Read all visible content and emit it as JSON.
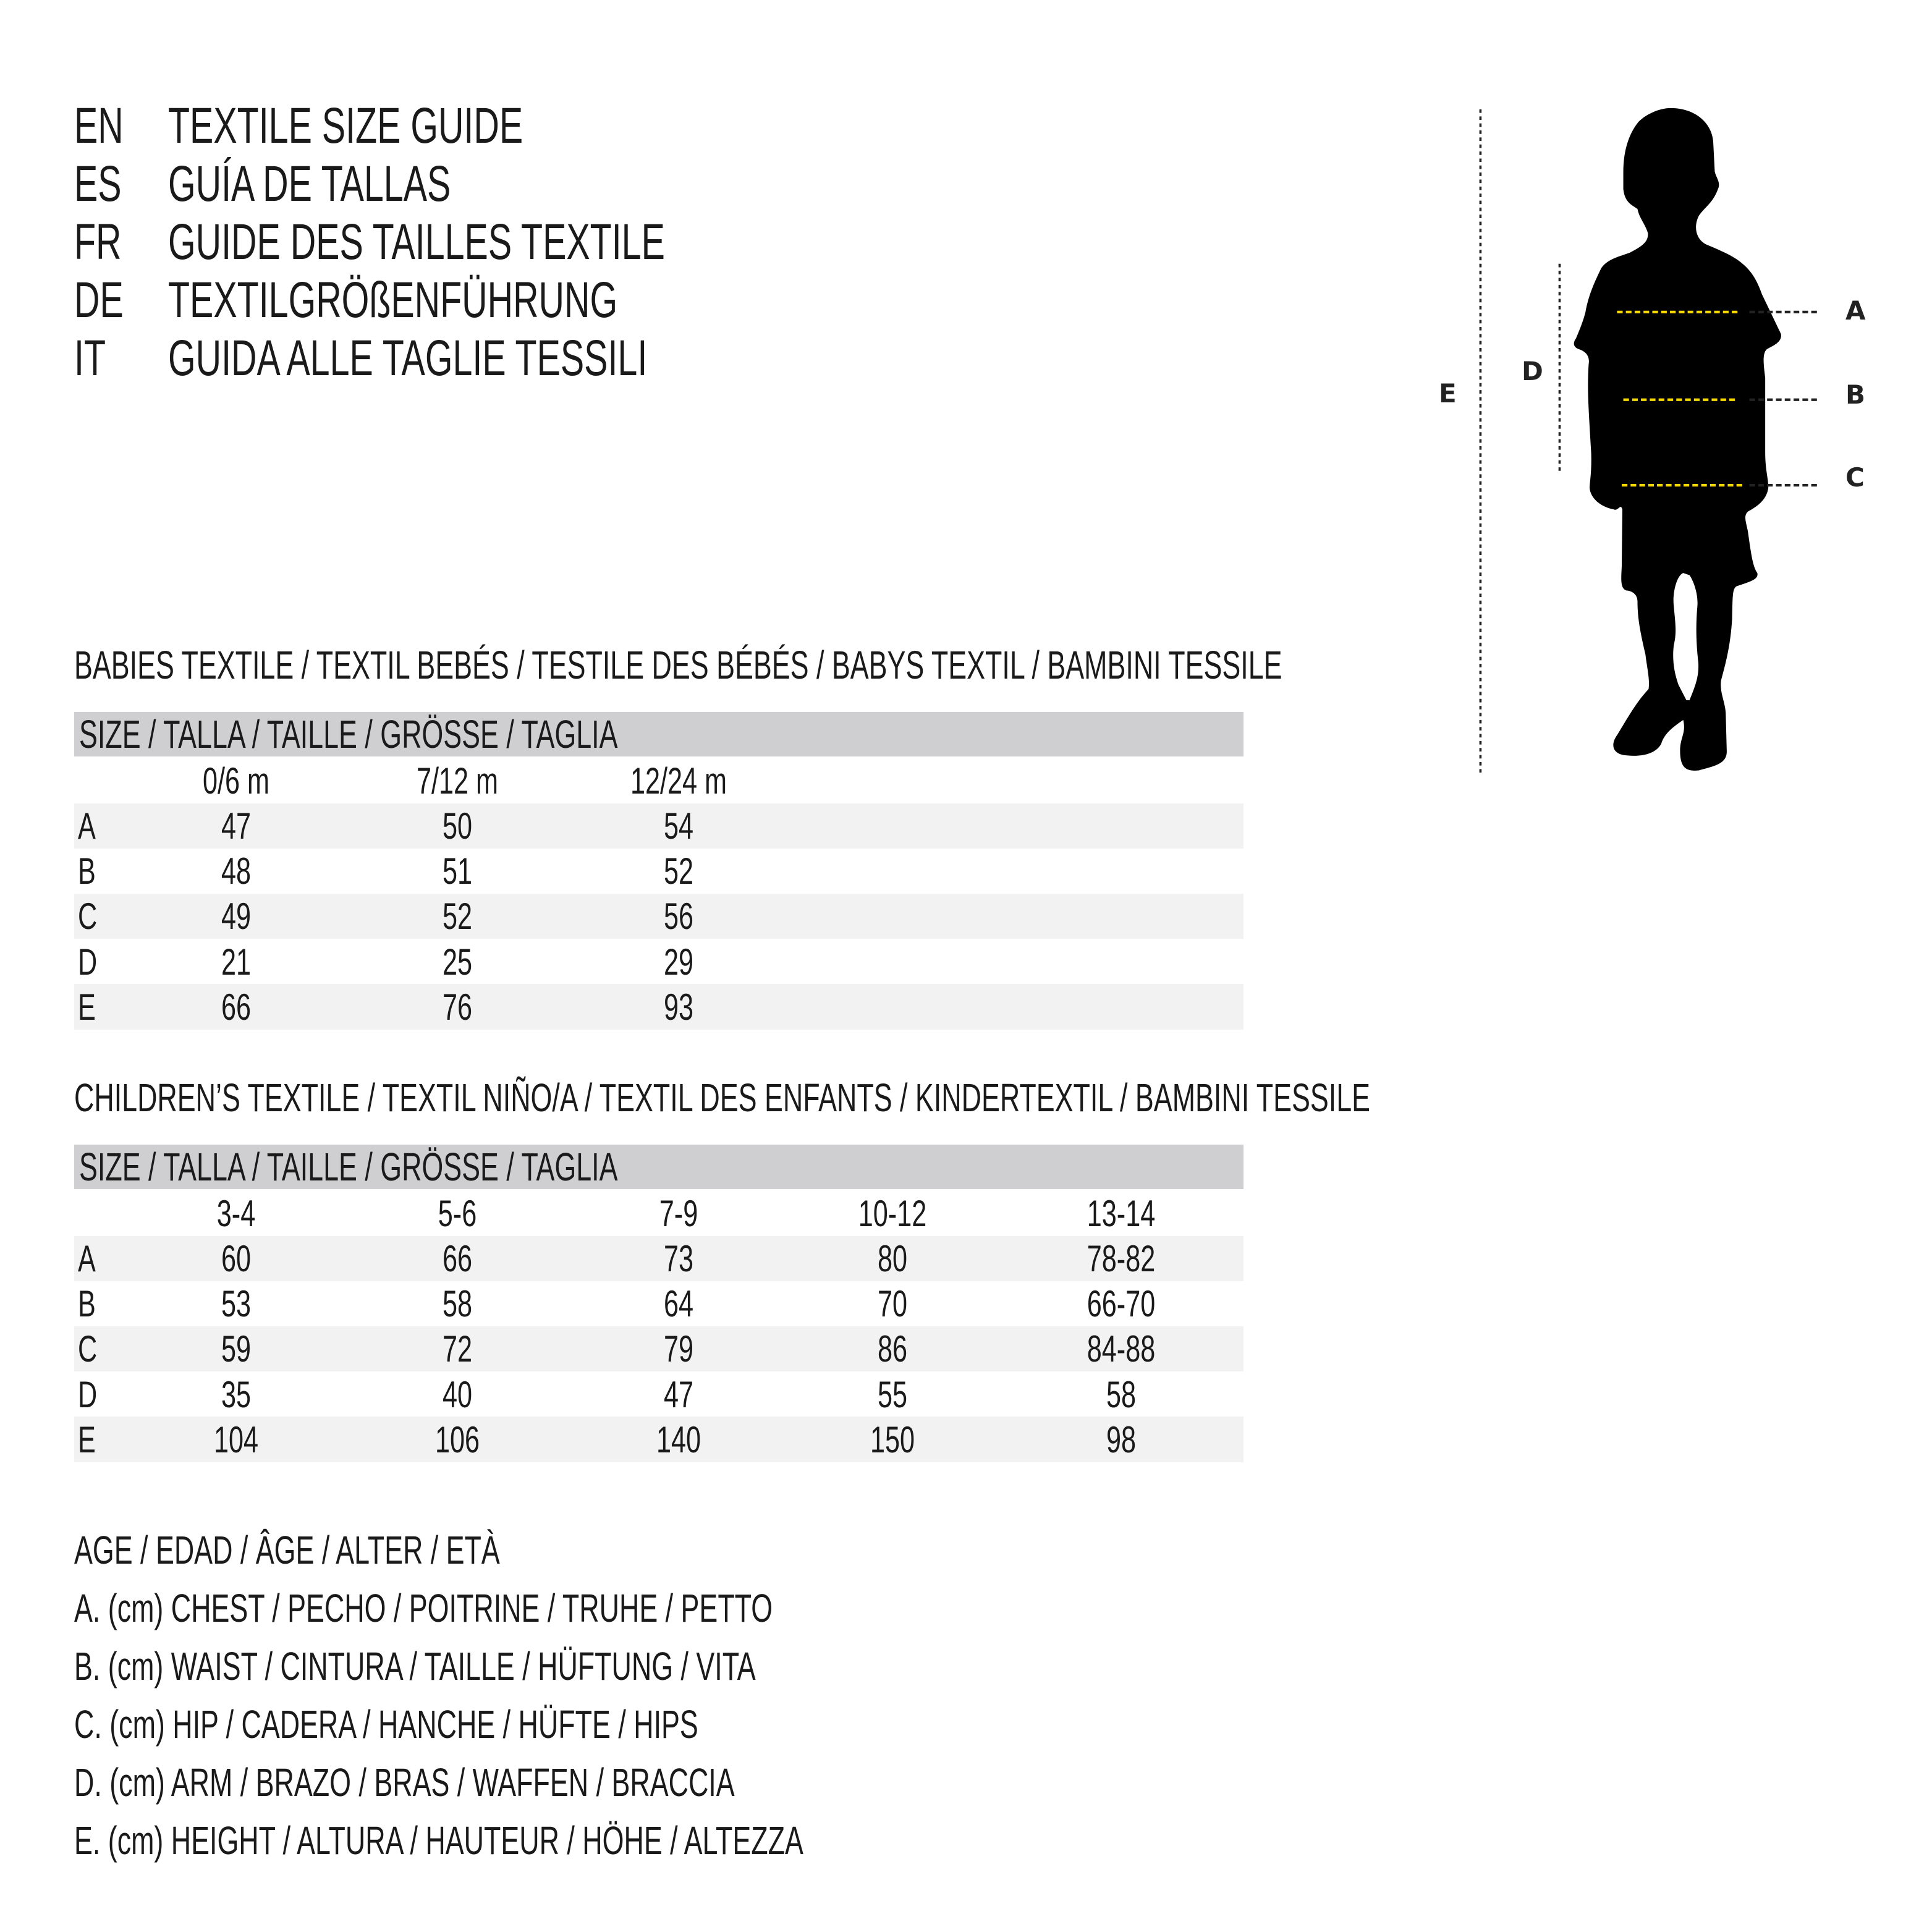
{
  "header": {
    "lines": [
      {
        "code": "EN",
        "title": "TEXTILE SIZE GUIDE"
      },
      {
        "code": "ES",
        "title": "GUÍA DE TALLAS"
      },
      {
        "code": "FR",
        "title": "GUIDE DES TAILLES TEXTILE"
      },
      {
        "code": "DE",
        "title": "TEXTILGRÖßENFÜHRUNG"
      },
      {
        "code": "IT",
        "title": "GUIDA ALLE TAGLIE TESSILI"
      }
    ]
  },
  "figure": {
    "labels": {
      "A": "A",
      "B": "B",
      "C": "C",
      "D": "D",
      "E": "E"
    },
    "colors": {
      "silhouette": "#000000",
      "measure_line": "#f5d800",
      "guide_line": "#222222"
    }
  },
  "babies": {
    "title": "BABIES TEXTILE / TEXTIL BEBÉS / TESTILE DES BÉBÉS / BABYS TEXTIL / BAMBINI TESSILE",
    "size_header": "SIZE / TALLA / TAILLE / GRÖSSE / TAGLIA",
    "columns": [
      "0/6 m",
      "7/12 m",
      "12/24 m"
    ],
    "rows": [
      {
        "label": "A",
        "values": [
          "47",
          "50",
          "54"
        ]
      },
      {
        "label": "B",
        "values": [
          "48",
          "51",
          "52"
        ]
      },
      {
        "label": "C",
        "values": [
          "49",
          "52",
          "56"
        ]
      },
      {
        "label": "D",
        "values": [
          "21",
          "25",
          "29"
        ]
      },
      {
        "label": "E",
        "values": [
          "66",
          "76",
          "93"
        ]
      }
    ]
  },
  "children": {
    "title": "CHILDREN’S TEXTILE / TEXTIL NIÑO/A / TEXTIL DES ENFANTS / KINDERTEXTIL / BAMBINI TESSILE",
    "size_header": "SIZE / TALLA / TAILLE / GRÖSSE / TAGLIA",
    "columns": [
      "3-4",
      "5-6",
      "7-9",
      "10-12",
      "13-14"
    ],
    "rows": [
      {
        "label": "A",
        "values": [
          "60",
          "66",
          "73",
          "80",
          "78-82"
        ]
      },
      {
        "label": "B",
        "values": [
          "53",
          "58",
          "64",
          "70",
          "66-70"
        ]
      },
      {
        "label": "C",
        "values": [
          "59",
          "72",
          "79",
          "86",
          "84-88"
        ]
      },
      {
        "label": "D",
        "values": [
          "35",
          "40",
          "47",
          "55",
          "58"
        ]
      },
      {
        "label": "E",
        "values": [
          "104",
          "106",
          "140",
          "150",
          "98"
        ]
      }
    ]
  },
  "legend": [
    "AGE / EDAD / ÂGE / ALTER / ETÀ",
    "A. (cm) CHEST / PECHO / POITRINE / TRUHE / PETTO",
    "B. (cm) WAIST / CINTURA / TAILLE / HÜFTUNG / VITA",
    "C. (cm) HIP / CADERA / HANCHE / HÜFTE / HIPS",
    "D. (cm) ARM / BRAZO / BRAS / WAFFEN / BRACCIA",
    "E. (cm) HEIGHT / ALTURA / HAUTEUR / HÖHE / ALTEZZA"
  ]
}
